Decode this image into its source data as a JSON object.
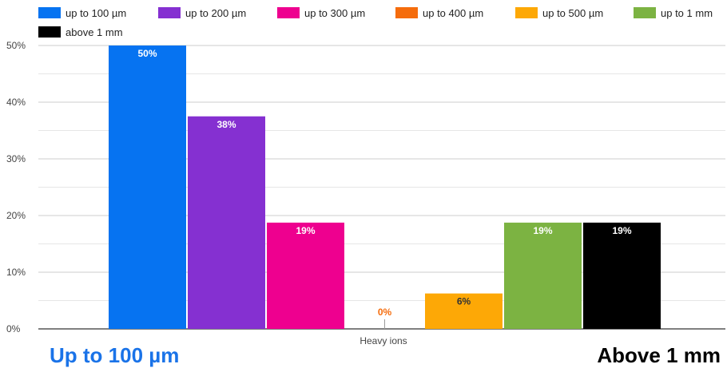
{
  "chart_data": {
    "type": "bar",
    "categories": [
      "Heavy ions"
    ],
    "series": [
      {
        "name": "up to 100 µm",
        "values": [
          50
        ],
        "label": "50%",
        "color": "#0673f1"
      },
      {
        "name": "up to 200 µm",
        "values": [
          37.5
        ],
        "label": "38%",
        "color": "#8530d1"
      },
      {
        "name": "up to 300 µm",
        "values": [
          18.75
        ],
        "label": "19%",
        "color": "#ee008f"
      },
      {
        "name": "up to 400 µm",
        "values": [
          0
        ],
        "label": "0%",
        "color": "#f56c0c"
      },
      {
        "name": "up to 500 µm",
        "values": [
          6.25
        ],
        "label": "6%",
        "color": "#fda806"
      },
      {
        "name": "up to 1 mm",
        "values": [
          18.75
        ],
        "label": "19%",
        "color": "#7cb342"
      },
      {
        "name": "above 1 mm",
        "values": [
          18.75
        ],
        "label": "19%",
        "color": "#000000"
      }
    ],
    "y_ticks": [
      "0%",
      "10%",
      "20%",
      "30%",
      "40%",
      "50%"
    ],
    "ylim": [
      0,
      50
    ],
    "grid": true,
    "legend": "top"
  },
  "captions": {
    "left": "Up to 100 µm",
    "right": "Above 1 mm"
  }
}
